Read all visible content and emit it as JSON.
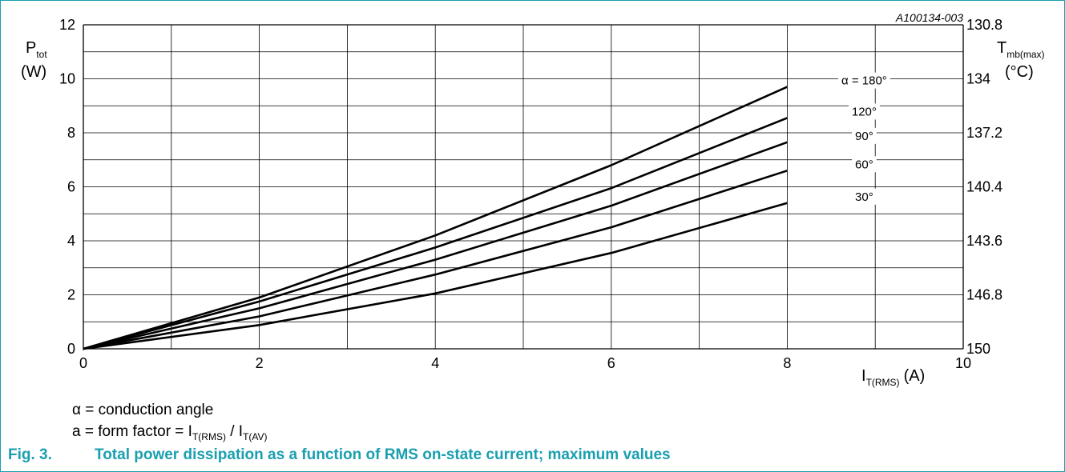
{
  "chart_data": {
    "type": "line",
    "figure_id": "A100134-003",
    "ylabel_main": "P",
    "ylabel_sub": "tot",
    "ylabel_unit": "(W)",
    "y2label_main": "T",
    "y2label_sub": "mb(max)",
    "y2label_unit": "(°C)",
    "xlabel_main": "I",
    "xlabel_sub": "T(RMS)",
    "xlabel_unit": "(A)",
    "xlim": [
      0,
      10
    ],
    "ylim": [
      0,
      12
    ],
    "x_ticks": [
      "0",
      "2",
      "4",
      "6",
      "8",
      "10"
    ],
    "y_ticks": [
      "0",
      "2",
      "4",
      "6",
      "8",
      "10",
      "12"
    ],
    "y2_ticks": [
      "150",
      "146.8",
      "143.6",
      "140.4",
      "137.2",
      "134",
      "130.8"
    ],
    "grid": true,
    "series": [
      {
        "name": "α = 180°",
        "x": [
          0,
          2,
          4,
          6,
          8
        ],
        "y": [
          0,
          1.9,
          4.2,
          6.8,
          9.7
        ]
      },
      {
        "name": "120°",
        "x": [
          0,
          2,
          4,
          6,
          8
        ],
        "y": [
          0,
          1.75,
          3.75,
          5.95,
          8.55
        ]
      },
      {
        "name": "90°",
        "x": [
          0,
          2,
          4,
          6,
          8
        ],
        "y": [
          0,
          1.5,
          3.3,
          5.3,
          7.65
        ]
      },
      {
        "name": "60°",
        "x": [
          0,
          2,
          4,
          6,
          8
        ],
        "y": [
          0,
          1.2,
          2.75,
          4.5,
          6.6
        ]
      },
      {
        "name": "30°",
        "x": [
          0,
          2,
          4,
          6,
          8
        ],
        "y": [
          0,
          0.88,
          2.05,
          3.55,
          5.4
        ]
      }
    ]
  },
  "notes": {
    "line1": "α = conduction angle",
    "line2_prefix": "a = form factor = I",
    "line2_sub1": "T(RMS)",
    "line2_mid": " / I",
    "line2_sub2": "T(AV)"
  },
  "caption": {
    "fig_number": "Fig. 3.",
    "text": "Total power dissipation as a function of RMS on-state current; maximum values"
  }
}
